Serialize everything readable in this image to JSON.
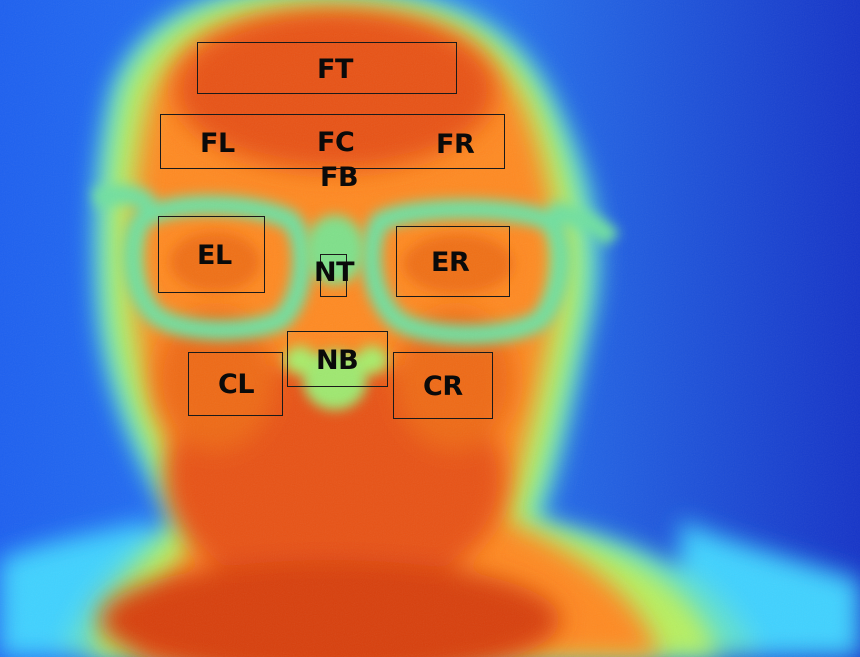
{
  "image": {
    "subject": "thermal-face",
    "colormap": "jet",
    "colors": {
      "background_cold": "#1e3fe0",
      "halo_cyan": "#3fd2ff",
      "halo_green": "#8ff07a",
      "warm_orange": "#ff7a1a",
      "hot_red": "#e04010",
      "glasses": "#6fe0a0"
    }
  },
  "regions": {
    "FT": "FT",
    "FL": "FL",
    "FC": "FC",
    "FR": "FR",
    "FB": "FB",
    "EL": "EL",
    "NT": "NT",
    "ER": "ER",
    "NB": "NB",
    "CL": "CL",
    "CR": "CR"
  }
}
